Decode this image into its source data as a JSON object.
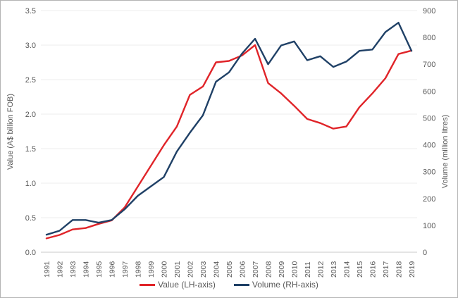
{
  "figure": {
    "background": "#ffffff",
    "border_color": "#b3b3b3",
    "text_color": "#595959",
    "gridline_color": "#ededed",
    "baseline_color": "#c9c9c9"
  },
  "axes": {
    "left": {
      "title": "Value (A$ billion FOB)",
      "tick_labels": [
        "0.0",
        "0.5",
        "1.0",
        "1.5",
        "2.0",
        "2.5",
        "3.0",
        "3.5"
      ],
      "tick_values": [
        0,
        0.5,
        1.0,
        1.5,
        2.0,
        2.5,
        3.0,
        3.5
      ]
    },
    "right": {
      "title": "Volume (million litres)",
      "tick_labels": [
        "0",
        "100",
        "200",
        "300",
        "400",
        "500",
        "600",
        "700",
        "800",
        "900"
      ],
      "tick_values": [
        0,
        100,
        200,
        300,
        400,
        500,
        600,
        700,
        800,
        900
      ]
    },
    "x": {
      "labels": [
        "1991",
        "1992",
        "1993",
        "1994",
        "1995",
        "1996",
        "1997",
        "1998",
        "1999",
        "2000",
        "2001",
        "2002",
        "2003",
        "2004",
        "2005",
        "2006",
        "2007",
        "2008",
        "2009",
        "2010",
        "2011",
        "2012",
        "2013",
        "2014",
        "2015",
        "2016",
        "2017",
        "2018",
        "2019"
      ]
    }
  },
  "legend": [
    {
      "label": "Value (LH-axis)",
      "color": "#e02429"
    },
    {
      "label": "Volume (RH-axis)",
      "color": "#1f4066"
    }
  ],
  "chart_data": {
    "type": "line",
    "title": "",
    "xlabel": "",
    "ylabel_left": "Value (A$ billion FOB)",
    "ylabel_right": "Volume (million litres)",
    "ylim_left": [
      0,
      3.5
    ],
    "ylim_right": [
      0,
      900
    ],
    "grid": true,
    "legend_position": "bottom",
    "x": [
      1991,
      1992,
      1993,
      1994,
      1995,
      1996,
      1997,
      1998,
      1999,
      2000,
      2001,
      2002,
      2003,
      2004,
      2005,
      2006,
      2007,
      2008,
      2009,
      2010,
      2011,
      2012,
      2013,
      2014,
      2015,
      2016,
      2017,
      2018,
      2019
    ],
    "series": [
      {
        "name": "Value (LH-axis)",
        "axis": "left",
        "unit": "A$ billion FOB",
        "color": "#e02429",
        "values": [
          0.2,
          0.25,
          0.33,
          0.35,
          0.41,
          0.46,
          0.65,
          0.95,
          1.25,
          1.55,
          1.82,
          2.28,
          2.4,
          2.75,
          2.77,
          2.85,
          3.0,
          2.45,
          2.3,
          2.12,
          1.93,
          1.87,
          1.79,
          1.82,
          2.1,
          2.3,
          2.52,
          2.87,
          2.92
        ]
      },
      {
        "name": "Volume (RH-axis)",
        "axis": "right",
        "unit": "million litres",
        "color": "#1f4066",
        "values": [
          65,
          80,
          120,
          120,
          110,
          120,
          160,
          210,
          245,
          280,
          375,
          445,
          510,
          635,
          670,
          740,
          795,
          700,
          770,
          785,
          715,
          730,
          690,
          710,
          750,
          755,
          820,
          855,
          750
        ]
      }
    ]
  }
}
